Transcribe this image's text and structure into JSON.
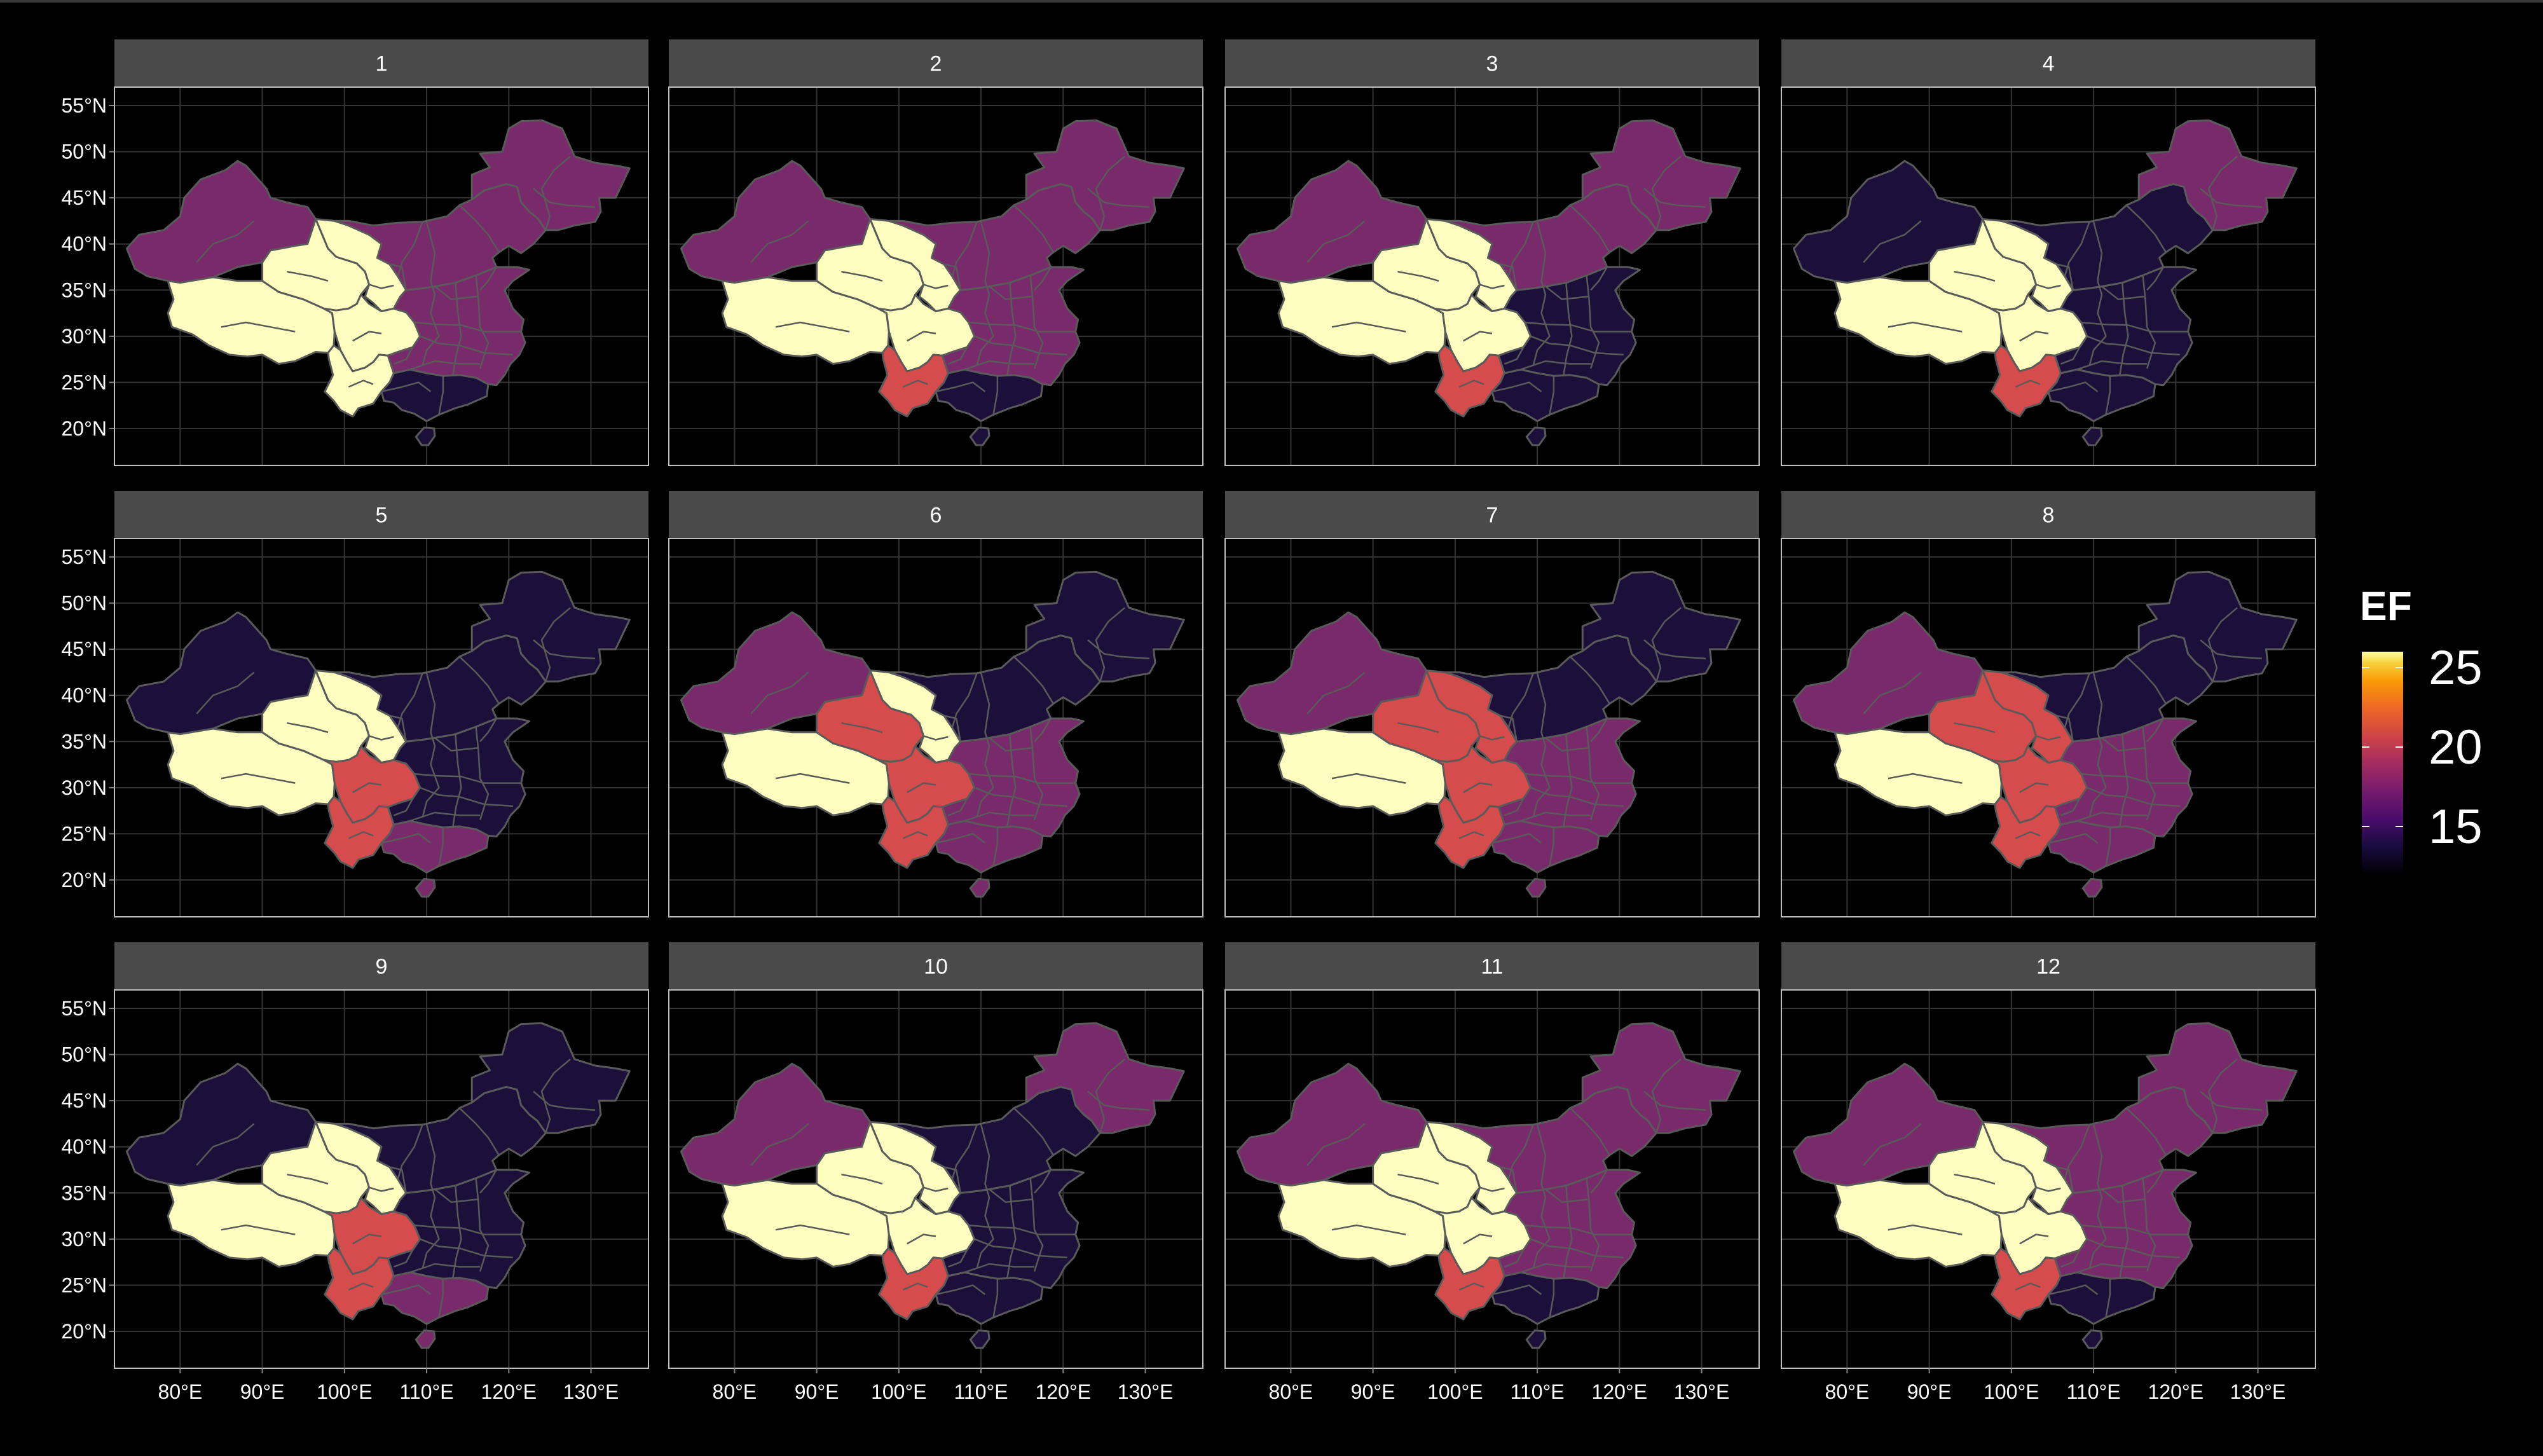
{
  "figure": {
    "background": "#000000",
    "panel_background": "#000000",
    "strip_fill": "#4a4a4a",
    "strip_text_color": "#ffffff",
    "grid_color": "#333333",
    "border_color": "#bfbfbf",
    "boundary_color": "#5a5a5a",
    "axis_text_color": "#ffffff"
  },
  "axes": {
    "x_ticks": [
      "80°E",
      "90°E",
      "100°E",
      "110°E",
      "120°E",
      "130°E"
    ],
    "x_values": [
      80,
      90,
      100,
      110,
      120,
      130
    ],
    "y_ticks": [
      "55°N",
      "50°N",
      "45°N",
      "40°N",
      "35°N",
      "30°N",
      "25°N",
      "20°N"
    ],
    "y_values": [
      55,
      50,
      45,
      40,
      35,
      30,
      25,
      20
    ],
    "lon_range": [
      72,
      137
    ],
    "lat_range": [
      16,
      57
    ]
  },
  "legend": {
    "title": "EF",
    "breaks": [
      "25",
      "20",
      "15"
    ],
    "break_values": [
      25,
      20,
      15
    ],
    "range": [
      12,
      26
    ],
    "palette": "inferno"
  },
  "region_colors": {
    "yellow": "#fcfdbf",
    "red": "#d64b4b",
    "orange": "#f08a3a",
    "purple": "#782a6b",
    "magenta": "#8c3177",
    "dark": "#1c0f3a"
  },
  "panels": [
    {
      "label": "1",
      "xinjiang": "purple",
      "tibet": "yellow",
      "qinghai": "yellow",
      "gansu": "yellow",
      "sichuan": "yellow",
      "yunnan": "yellow",
      "northeast": "purple",
      "north": "purple",
      "east": "purple",
      "south": "dark"
    },
    {
      "label": "2",
      "xinjiang": "purple",
      "tibet": "yellow",
      "qinghai": "yellow",
      "gansu": "yellow",
      "sichuan": "yellow",
      "yunnan": "red",
      "northeast": "purple",
      "north": "purple",
      "east": "purple",
      "south": "dark"
    },
    {
      "label": "3",
      "xinjiang": "purple",
      "tibet": "yellow",
      "qinghai": "yellow",
      "gansu": "yellow",
      "sichuan": "yellow",
      "yunnan": "red",
      "northeast": "purple",
      "north": "purple",
      "east": "dark",
      "south": "dark"
    },
    {
      "label": "4",
      "xinjiang": "dark",
      "tibet": "yellow",
      "qinghai": "yellow",
      "gansu": "yellow",
      "sichuan": "yellow",
      "yunnan": "red",
      "northeast": "purple",
      "north": "dark",
      "east": "dark",
      "south": "dark"
    },
    {
      "label": "5",
      "xinjiang": "dark",
      "tibet": "yellow",
      "qinghai": "yellow",
      "gansu": "yellow",
      "sichuan": "red",
      "yunnan": "red",
      "northeast": "dark",
      "north": "dark",
      "east": "dark",
      "south": "purple"
    },
    {
      "label": "6",
      "xinjiang": "purple",
      "tibet": "yellow",
      "qinghai": "red",
      "gansu": "yellow",
      "sichuan": "red",
      "yunnan": "red",
      "northeast": "dark",
      "north": "dark",
      "east": "purple",
      "south": "purple"
    },
    {
      "label": "7",
      "xinjiang": "purple",
      "tibet": "yellow",
      "qinghai": "red",
      "gansu": "red",
      "sichuan": "red",
      "yunnan": "red",
      "northeast": "dark",
      "north": "dark",
      "east": "purple",
      "south": "purple"
    },
    {
      "label": "8",
      "xinjiang": "purple",
      "tibet": "yellow",
      "qinghai": "red",
      "gansu": "red",
      "sichuan": "red",
      "yunnan": "red",
      "northeast": "dark",
      "north": "dark",
      "east": "purple",
      "south": "purple"
    },
    {
      "label": "9",
      "xinjiang": "dark",
      "tibet": "yellow",
      "qinghai": "yellow",
      "gansu": "yellow",
      "sichuan": "red",
      "yunnan": "red",
      "northeast": "dark",
      "north": "dark",
      "east": "dark",
      "south": "purple"
    },
    {
      "label": "10",
      "xinjiang": "purple",
      "tibet": "yellow",
      "qinghai": "yellow",
      "gansu": "yellow",
      "sichuan": "yellow",
      "yunnan": "red",
      "northeast": "purple",
      "north": "dark",
      "east": "dark",
      "south": "dark"
    },
    {
      "label": "11",
      "xinjiang": "purple",
      "tibet": "yellow",
      "qinghai": "yellow",
      "gansu": "yellow",
      "sichuan": "yellow",
      "yunnan": "red",
      "northeast": "purple",
      "north": "purple",
      "east": "purple",
      "south": "dark"
    },
    {
      "label": "12",
      "xinjiang": "purple",
      "tibet": "yellow",
      "qinghai": "yellow",
      "gansu": "yellow",
      "sichuan": "yellow",
      "yunnan": "red",
      "northeast": "purple",
      "north": "purple",
      "east": "purple",
      "south": "dark"
    }
  ]
}
